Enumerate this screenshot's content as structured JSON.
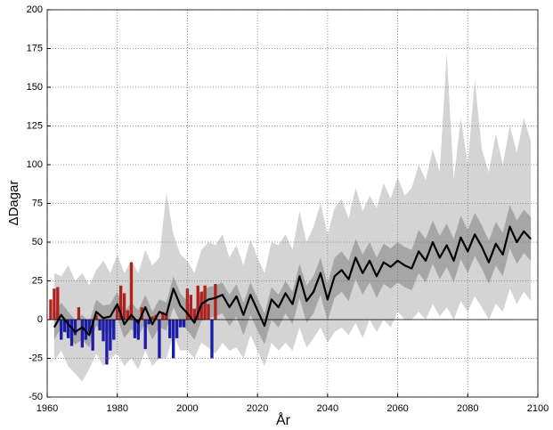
{
  "chart_data": {
    "type": "line",
    "xlabel": "År",
    "ylabel": "ΔDagar",
    "xlim": [
      1960,
      2100
    ],
    "ylim": [
      -50,
      200
    ],
    "xticks": [
      1960,
      1980,
      2000,
      2020,
      2040,
      2060,
      2080,
      2100
    ],
    "yticks": [
      -50,
      -25,
      0,
      25,
      50,
      75,
      100,
      125,
      150,
      175,
      200
    ],
    "grid": true,
    "zero_line": true,
    "x": [
      1962,
      1964,
      1966,
      1968,
      1970,
      1972,
      1974,
      1976,
      1978,
      1980,
      1982,
      1984,
      1986,
      1988,
      1990,
      1992,
      1994,
      1996,
      1998,
      2000,
      2002,
      2004,
      2006,
      2008,
      2010,
      2012,
      2014,
      2016,
      2018,
      2020,
      2022,
      2024,
      2026,
      2028,
      2030,
      2032,
      2034,
      2036,
      2038,
      2040,
      2042,
      2044,
      2046,
      2048,
      2050,
      2052,
      2054,
      2056,
      2058,
      2060,
      2062,
      2064,
      2066,
      2068,
      2070,
      2072,
      2074,
      2076,
      2078,
      2080,
      2082,
      2084,
      2086,
      2088,
      2090,
      2092,
      2094,
      2096,
      2098
    ],
    "bands": [
      {
        "color": "#d4d4d4",
        "lower": [
          -27,
          -20,
          -30,
          -35,
          -40,
          -32,
          -22,
          -30,
          -25,
          -22,
          -30,
          -25,
          -32,
          -20,
          -30,
          -25,
          -25,
          -10,
          -20,
          -20,
          -25,
          -15,
          -18,
          -22,
          -15,
          -20,
          -18,
          -25,
          -10,
          -20,
          -30,
          -15,
          -20,
          -15,
          -20,
          -5,
          -18,
          -12,
          -5,
          -15,
          -8,
          -5,
          -10,
          -2,
          -12,
          0,
          -8,
          0,
          -5,
          5,
          0,
          0,
          5,
          0,
          10,
          2,
          8,
          0,
          12,
          5,
          15,
          8,
          0,
          10,
          5,
          20,
          10,
          18,
          12
        ],
        "upper": [
          30,
          28,
          35,
          25,
          30,
          22,
          32,
          38,
          30,
          42,
          30,
          38,
          30,
          45,
          35,
          40,
          82,
          55,
          42,
          38,
          30,
          45,
          50,
          48,
          55,
          40,
          48,
          35,
          52,
          40,
          30,
          50,
          48,
          55,
          45,
          70,
          50,
          60,
          75,
          55,
          72,
          78,
          65,
          85,
          70,
          80,
          72,
          88,
          78,
          92,
          80,
          85,
          100,
          90,
          110,
          95,
          172,
          90,
          130,
          100,
          155,
          110,
          95,
          120,
          100,
          125,
          108,
          130,
          115
        ]
      },
      {
        "color": "#a6a6a6",
        "lower": [
          -13,
          -5,
          -11,
          -16,
          -13,
          -18,
          -4,
          -8,
          -7,
          1,
          -12,
          -6,
          -11,
          -2,
          -13,
          -5,
          -7,
          8,
          -2,
          -7,
          -13,
          -1,
          1,
          2,
          4,
          -4,
          2,
          -10,
          3,
          -7,
          -16,
          0,
          -5,
          4,
          -3,
          14,
          -2,
          4,
          16,
          -1,
          14,
          18,
          12,
          26,
          16,
          24,
          14,
          23,
          20,
          24,
          21,
          19,
          30,
          24,
          36,
          26,
          34,
          24,
          39,
          30,
          41,
          33,
          23,
          35,
          28,
          46,
          36,
          43,
          38
        ],
        "upper": [
          3,
          11,
          5,
          0,
          3,
          -2,
          13,
          9,
          10,
          18,
          5,
          11,
          6,
          16,
          5,
          13,
          11,
          28,
          17,
          12,
          6,
          18,
          21,
          22,
          24,
          16,
          23,
          11,
          24,
          14,
          4,
          21,
          16,
          25,
          18,
          36,
          22,
          28,
          40,
          23,
          40,
          44,
          38,
          52,
          42,
          50,
          40,
          49,
          46,
          50,
          47,
          45,
          58,
          52,
          64,
          54,
          62,
          52,
          67,
          58,
          69,
          61,
          51,
          63,
          56,
          74,
          64,
          71,
          66
        ]
      }
    ],
    "series": [
      {
        "color": "#000000",
        "values": [
          -5,
          3,
          -3,
          -8,
          -5,
          -10,
          5,
          1,
          2,
          10,
          -3,
          3,
          -2,
          8,
          -3,
          5,
          3,
          20,
          9,
          4,
          -2,
          10,
          13,
          14,
          16,
          8,
          15,
          3,
          16,
          6,
          -4,
          13,
          8,
          17,
          10,
          28,
          12,
          18,
          30,
          13,
          28,
          32,
          26,
          40,
          30,
          38,
          28,
          37,
          34,
          38,
          35,
          33,
          44,
          38,
          50,
          40,
          48,
          38,
          53,
          44,
          55,
          47,
          37,
          49,
          42,
          60,
          50,
          57,
          52
        ]
      }
    ],
    "observations": {
      "positive_color": "#b0201e",
      "negative_color": "#1c1ca8",
      "x": [
        1961,
        1962,
        1963,
        1964,
        1965,
        1966,
        1967,
        1968,
        1969,
        1970,
        1971,
        1972,
        1973,
        1974,
        1975,
        1976,
        1977,
        1978,
        1979,
        1980,
        1981,
        1982,
        1983,
        1984,
        1985,
        1986,
        1987,
        1988,
        1989,
        1990,
        1991,
        1992,
        1993,
        1994,
        1995,
        1996,
        1997,
        1998,
        1999,
        2000,
        2001,
        2002,
        2003,
        2004,
        2005,
        2006,
        2007,
        2008
      ],
      "values": [
        13,
        20,
        21,
        -13,
        -8,
        -12,
        -17,
        -10,
        8,
        -18,
        -13,
        -8,
        -20,
        3,
        -7,
        -14,
        -29,
        -20,
        -13,
        8,
        22,
        17,
        6,
        37,
        -12,
        -13,
        8,
        -19,
        -3,
        2,
        3,
        -25,
        5,
        4,
        -12,
        -25,
        -12,
        -5,
        -5,
        20,
        16,
        7,
        22,
        18,
        22,
        10,
        -25,
        23
      ]
    }
  }
}
